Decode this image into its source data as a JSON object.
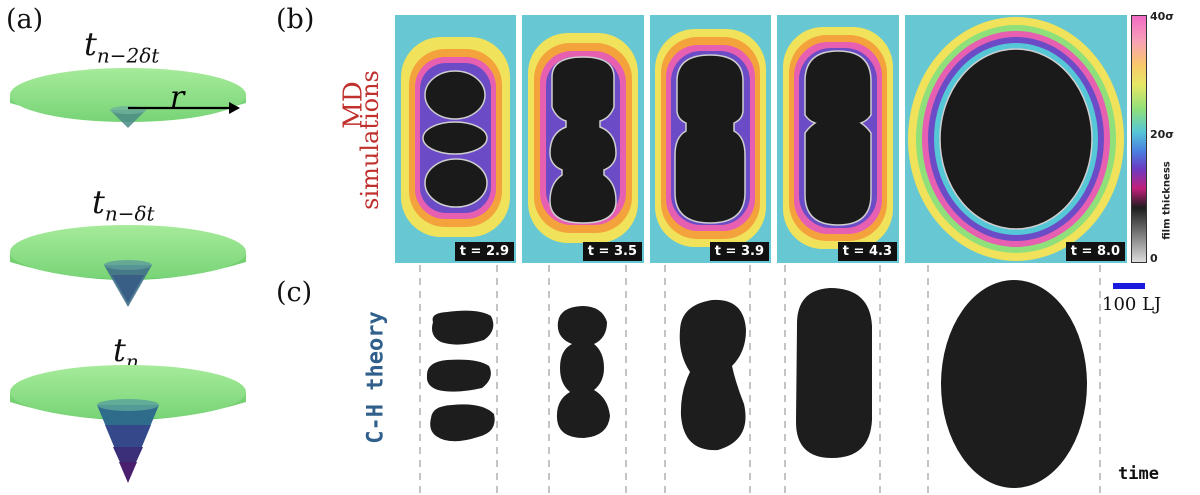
{
  "panels": {
    "a": "(a)",
    "b": "(b)",
    "c": "(c)"
  },
  "cones": [
    {
      "base": "t",
      "sub": "n−2δt",
      "depth_level": 1
    },
    {
      "base": "t",
      "sub": "n−δt",
      "depth_level": 2
    },
    {
      "base": "t",
      "sub": "n",
      "depth_level": 3
    }
  ],
  "radius_label": "r",
  "row_labels": {
    "md_line1": "MD",
    "md_line2": "simulations",
    "ch": "C-H theory"
  },
  "simulations": [
    {
      "time_label": "t = 2.9"
    },
    {
      "time_label": "t = 3.5"
    },
    {
      "time_label": "t = 3.9"
    },
    {
      "time_label": "t = 4.3"
    },
    {
      "time_label": "t = 8.0"
    }
  ],
  "colorbar": {
    "title": "film thickness",
    "ticks": [
      "40σ",
      "20σ",
      "0"
    ],
    "colors": [
      "#f06bc4",
      "#f7a0b8",
      "#f8c96a",
      "#e6e865",
      "#8fe07a",
      "#56c7d6",
      "#4a7fe0",
      "#6a3cc4",
      "#c21f7a",
      "#1e1e1e",
      "#bdbdbd"
    ]
  },
  "scale_bar": {
    "label": "100 LJ",
    "color": "#1a1adf"
  },
  "axis": {
    "time_label": "time"
  }
}
